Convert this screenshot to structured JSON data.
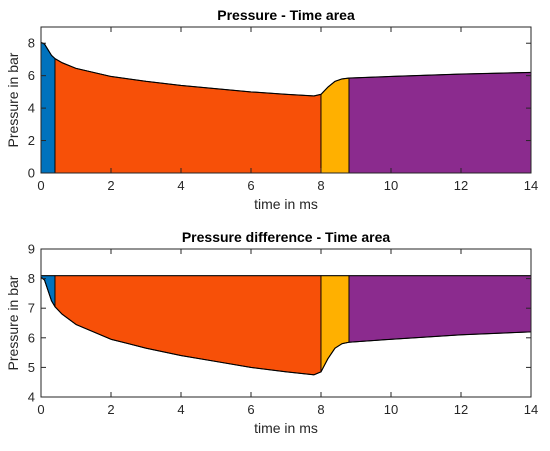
{
  "chart_data": [
    {
      "type": "area",
      "title": "Pressure - Time area",
      "xlabel": "time in ms",
      "ylabel": "Pressure in bar",
      "xlim": [
        0,
        14
      ],
      "ylim": [
        0,
        9
      ],
      "xticks": [
        "0",
        "2",
        "4",
        "6",
        "8",
        "10",
        "12",
        "14"
      ],
      "yticks": [
        "0",
        "2",
        "4",
        "6",
        "8"
      ],
      "fill_mode": "below_curve",
      "curve": [
        {
          "x": 0,
          "y": 8.05
        },
        {
          "x": 0.1,
          "y": 7.95
        },
        {
          "x": 0.2,
          "y": 7.6
        },
        {
          "x": 0.3,
          "y": 7.25
        },
        {
          "x": 0.4,
          "y": 7.05
        },
        {
          "x": 0.6,
          "y": 6.8
        },
        {
          "x": 1.0,
          "y": 6.45
        },
        {
          "x": 2.0,
          "y": 5.95
        },
        {
          "x": 3.0,
          "y": 5.65
        },
        {
          "x": 4.0,
          "y": 5.4
        },
        {
          "x": 5.0,
          "y": 5.2
        },
        {
          "x": 6.0,
          "y": 5.0
        },
        {
          "x": 7.0,
          "y": 4.85
        },
        {
          "x": 7.8,
          "y": 4.75
        },
        {
          "x": 8.0,
          "y": 4.85
        },
        {
          "x": 8.2,
          "y": 5.3
        },
        {
          "x": 8.4,
          "y": 5.65
        },
        {
          "x": 8.6,
          "y": 5.8
        },
        {
          "x": 8.8,
          "y": 5.85
        },
        {
          "x": 10.0,
          "y": 5.95
        },
        {
          "x": 12.0,
          "y": 6.1
        },
        {
          "x": 14.0,
          "y": 6.2
        }
      ],
      "segments": [
        {
          "x_start": 0,
          "x_end": 0.4,
          "color": "#0072BD"
        },
        {
          "x_start": 0.4,
          "x_end": 8.0,
          "color": "#F75008"
        },
        {
          "x_start": 8.0,
          "x_end": 8.8,
          "color": "#FFB000"
        },
        {
          "x_start": 8.8,
          "x_end": 14.0,
          "color": "#8B2B8E"
        }
      ]
    },
    {
      "type": "area",
      "title": "Pressure difference - Time area",
      "xlabel": "time in ms",
      "ylabel": "Pressure in bar",
      "xlim": [
        0,
        14
      ],
      "ylim": [
        4,
        9
      ],
      "xticks": [
        "0",
        "2",
        "4",
        "6",
        "8",
        "10",
        "12",
        "14"
      ],
      "yticks": [
        "4",
        "5",
        "6",
        "7",
        "8",
        "9"
      ],
      "fill_mode": "between_curve_and_reference",
      "reference": 8.1,
      "curve": [
        {
          "x": 0,
          "y": 8.05
        },
        {
          "x": 0.1,
          "y": 7.95
        },
        {
          "x": 0.2,
          "y": 7.6
        },
        {
          "x": 0.3,
          "y": 7.25
        },
        {
          "x": 0.4,
          "y": 7.05
        },
        {
          "x": 0.6,
          "y": 6.8
        },
        {
          "x": 1.0,
          "y": 6.45
        },
        {
          "x": 2.0,
          "y": 5.95
        },
        {
          "x": 3.0,
          "y": 5.65
        },
        {
          "x": 4.0,
          "y": 5.4
        },
        {
          "x": 5.0,
          "y": 5.2
        },
        {
          "x": 6.0,
          "y": 5.0
        },
        {
          "x": 7.0,
          "y": 4.85
        },
        {
          "x": 7.8,
          "y": 4.75
        },
        {
          "x": 8.0,
          "y": 4.85
        },
        {
          "x": 8.2,
          "y": 5.3
        },
        {
          "x": 8.4,
          "y": 5.65
        },
        {
          "x": 8.6,
          "y": 5.8
        },
        {
          "x": 8.8,
          "y": 5.85
        },
        {
          "x": 10.0,
          "y": 5.95
        },
        {
          "x": 12.0,
          "y": 6.1
        },
        {
          "x": 14.0,
          "y": 6.2
        }
      ],
      "segments": [
        {
          "x_start": 0,
          "x_end": 0.4,
          "color": "#0072BD"
        },
        {
          "x_start": 0.4,
          "x_end": 8.0,
          "color": "#F75008"
        },
        {
          "x_start": 8.0,
          "x_end": 8.8,
          "color": "#FFB000"
        },
        {
          "x_start": 8.8,
          "x_end": 14.0,
          "color": "#8B2B8E"
        }
      ]
    }
  ]
}
